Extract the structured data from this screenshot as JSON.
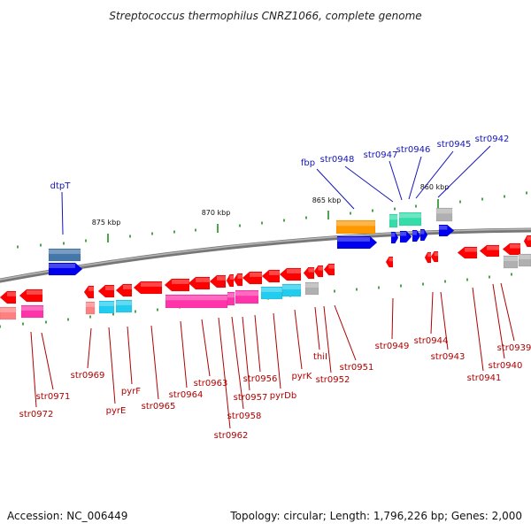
{
  "title": "Streptococcus thermophilus CNRZ1066, complete genome",
  "footer": {
    "accession": "Accession: NC_006449",
    "summary": "Topology: circular; Length: 1,796,226 bp; Genes: 2,000"
  },
  "ticks": [
    "875 kbp",
    "870 kbp",
    "865 kbp",
    "860 kbp"
  ],
  "forward_labels": [
    "dtpT",
    "fbp",
    "str0948",
    "str0947",
    "str0946",
    "str0945",
    "str0942"
  ],
  "reverse_labels": [
    "str0972",
    "str0971",
    "str0969",
    "pyrE",
    "pyrF",
    "str0965",
    "str0964",
    "str0963",
    "str0962",
    "str0958",
    "str0957",
    "str0956",
    "pyrDb",
    "pyrK",
    "thiI",
    "str0952",
    "str0951",
    "str0949",
    "str0944",
    "str0943",
    "str0941",
    "str0940",
    "str0939"
  ],
  "colors": {
    "backbone": "#777777",
    "cds": "#ff0000",
    "cds_light": "#ff8080",
    "fwd_cds": "#0000ee",
    "magenta": "#ff33aa",
    "cyan": "#22ccee",
    "orange": "#ff9900",
    "teal": "#33ddaa",
    "steel": "#4477aa",
    "gray": "#b0b0b0",
    "tick_green": "#118811",
    "blue_label": "#1515b8",
    "red_label": "#b00000"
  }
}
